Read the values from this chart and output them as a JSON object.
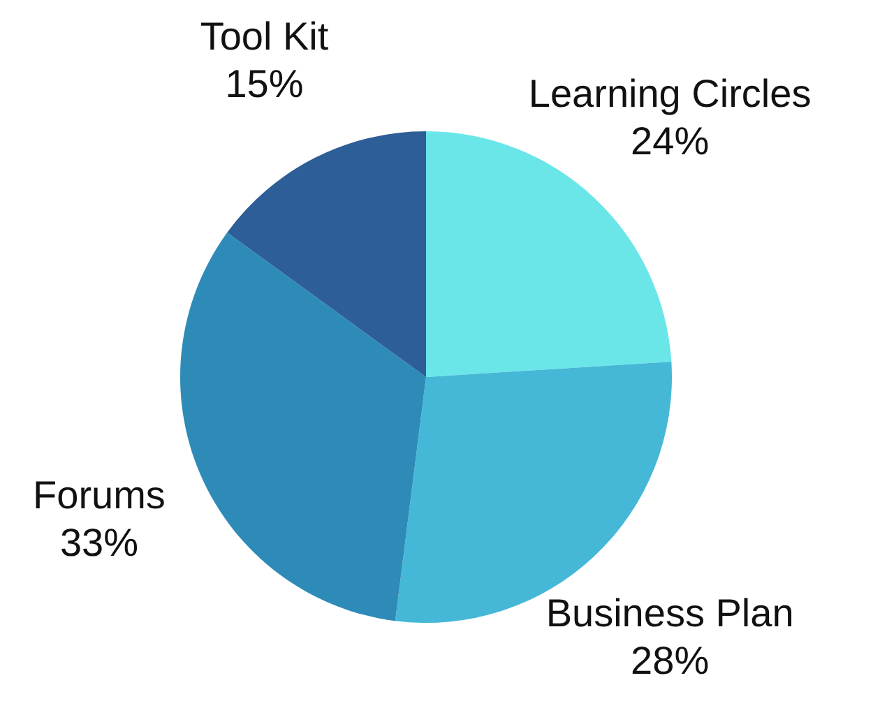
{
  "chart_data": {
    "type": "pie",
    "categories": [
      "Learning Circles",
      "Business Plan",
      "Forums",
      "Tool Kit"
    ],
    "values": [
      24,
      28,
      33,
      15
    ],
    "colors": [
      "#6ae6e8",
      "#44b8d6",
      "#2e8bb8",
      "#2d5e98"
    ],
    "value_labels": [
      "24%",
      "28%",
      "33%",
      "15%"
    ],
    "legend": false
  }
}
